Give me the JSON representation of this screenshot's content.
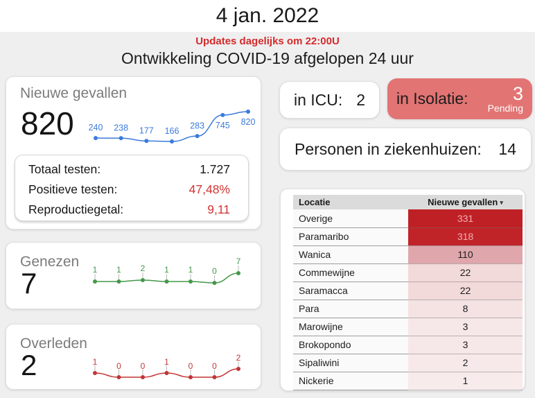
{
  "header": {
    "date_title": "4 jan. 2022",
    "update_notice": "Updates dagelijks om 22:00U",
    "subtitle": "Ontwikkeling COVID-19 afgelopen 24 uur"
  },
  "nieuwe_gevallen": {
    "title": "Nieuwe gevallen",
    "value": "820"
  },
  "stats": {
    "rows": [
      {
        "label": "Totaal testen:",
        "value": "1.727"
      },
      {
        "label": "Positieve testen:",
        "value": "47,48%"
      },
      {
        "label": "Reproductiegetal:",
        "value": "9,11"
      }
    ]
  },
  "genezen": {
    "title": "Genezen",
    "value": "7"
  },
  "overleden": {
    "title": "Overleden",
    "value": "2"
  },
  "status_cards": {
    "icu": {
      "label": "in ICU:",
      "value": "2"
    },
    "isolatie": {
      "label": "in Isolatie:",
      "value": "3",
      "sub_label": "Pending",
      "bg": "#e27473"
    },
    "ziekenhuizen": {
      "label": "Personen in ziekenhuizen:",
      "value": "14"
    }
  },
  "table": {
    "headers": {
      "location": "Locatie",
      "value": "Nieuwe gevallen",
      "sort_icon": "▾"
    },
    "rows": [
      {
        "locatie": "Overige",
        "value": "331",
        "bg": "#bf2026",
        "fg": "#efaeb2"
      },
      {
        "locatie": "Paramaribo",
        "value": "318",
        "bg": "#c02428",
        "fg": "#efaeb2"
      },
      {
        "locatie": "Wanica",
        "value": "110",
        "bg": "#dfa6ab",
        "fg": "#1c1c1c"
      },
      {
        "locatie": "Commewijne",
        "value": "22",
        "bg": "#f2d9da",
        "fg": "#1c1c1c"
      },
      {
        "locatie": "Saramacca",
        "value": "22",
        "bg": "#f2d9da",
        "fg": "#1c1c1c"
      },
      {
        "locatie": "Para",
        "value": "8",
        "bg": "#f5e3e4",
        "fg": "#1c1c1c"
      },
      {
        "locatie": "Marowijne",
        "value": "3",
        "bg": "#f6e7e8",
        "fg": "#1c1c1c"
      },
      {
        "locatie": "Brokopondo",
        "value": "3",
        "bg": "#f6e7e8",
        "fg": "#1c1c1c"
      },
      {
        "locatie": "Sipaliwini",
        "value": "2",
        "bg": "#f7e9ea",
        "fg": "#1c1c1c"
      },
      {
        "locatie": "Nickerie",
        "value": "1",
        "bg": "#f7ebec",
        "fg": "#1c1c1c"
      }
    ]
  },
  "chart_data": [
    {
      "type": "line",
      "name": "nieuwe-gevallen-trend",
      "title": "Nieuwe gevallen laatste 7 dagen",
      "values": [
        240,
        238,
        177,
        166,
        283,
        745,
        820
      ],
      "color": "#3b7bdc",
      "data_labels": true,
      "grid": false,
      "axes": "hidden"
    },
    {
      "type": "line",
      "name": "genezen-trend",
      "title": "Genezen laatste 7 dagen",
      "values": [
        1,
        1,
        2,
        1,
        1,
        0,
        7
      ],
      "color": "#43984a",
      "data_labels": true,
      "grid": false,
      "axes": "hidden"
    },
    {
      "type": "line",
      "name": "overleden-trend",
      "title": "Overleden laatste 7 dagen",
      "values": [
        1,
        0,
        0,
        1,
        0,
        0,
        2
      ],
      "color": "#c23535",
      "data_labels": true,
      "grid": false,
      "axes": "hidden"
    }
  ]
}
